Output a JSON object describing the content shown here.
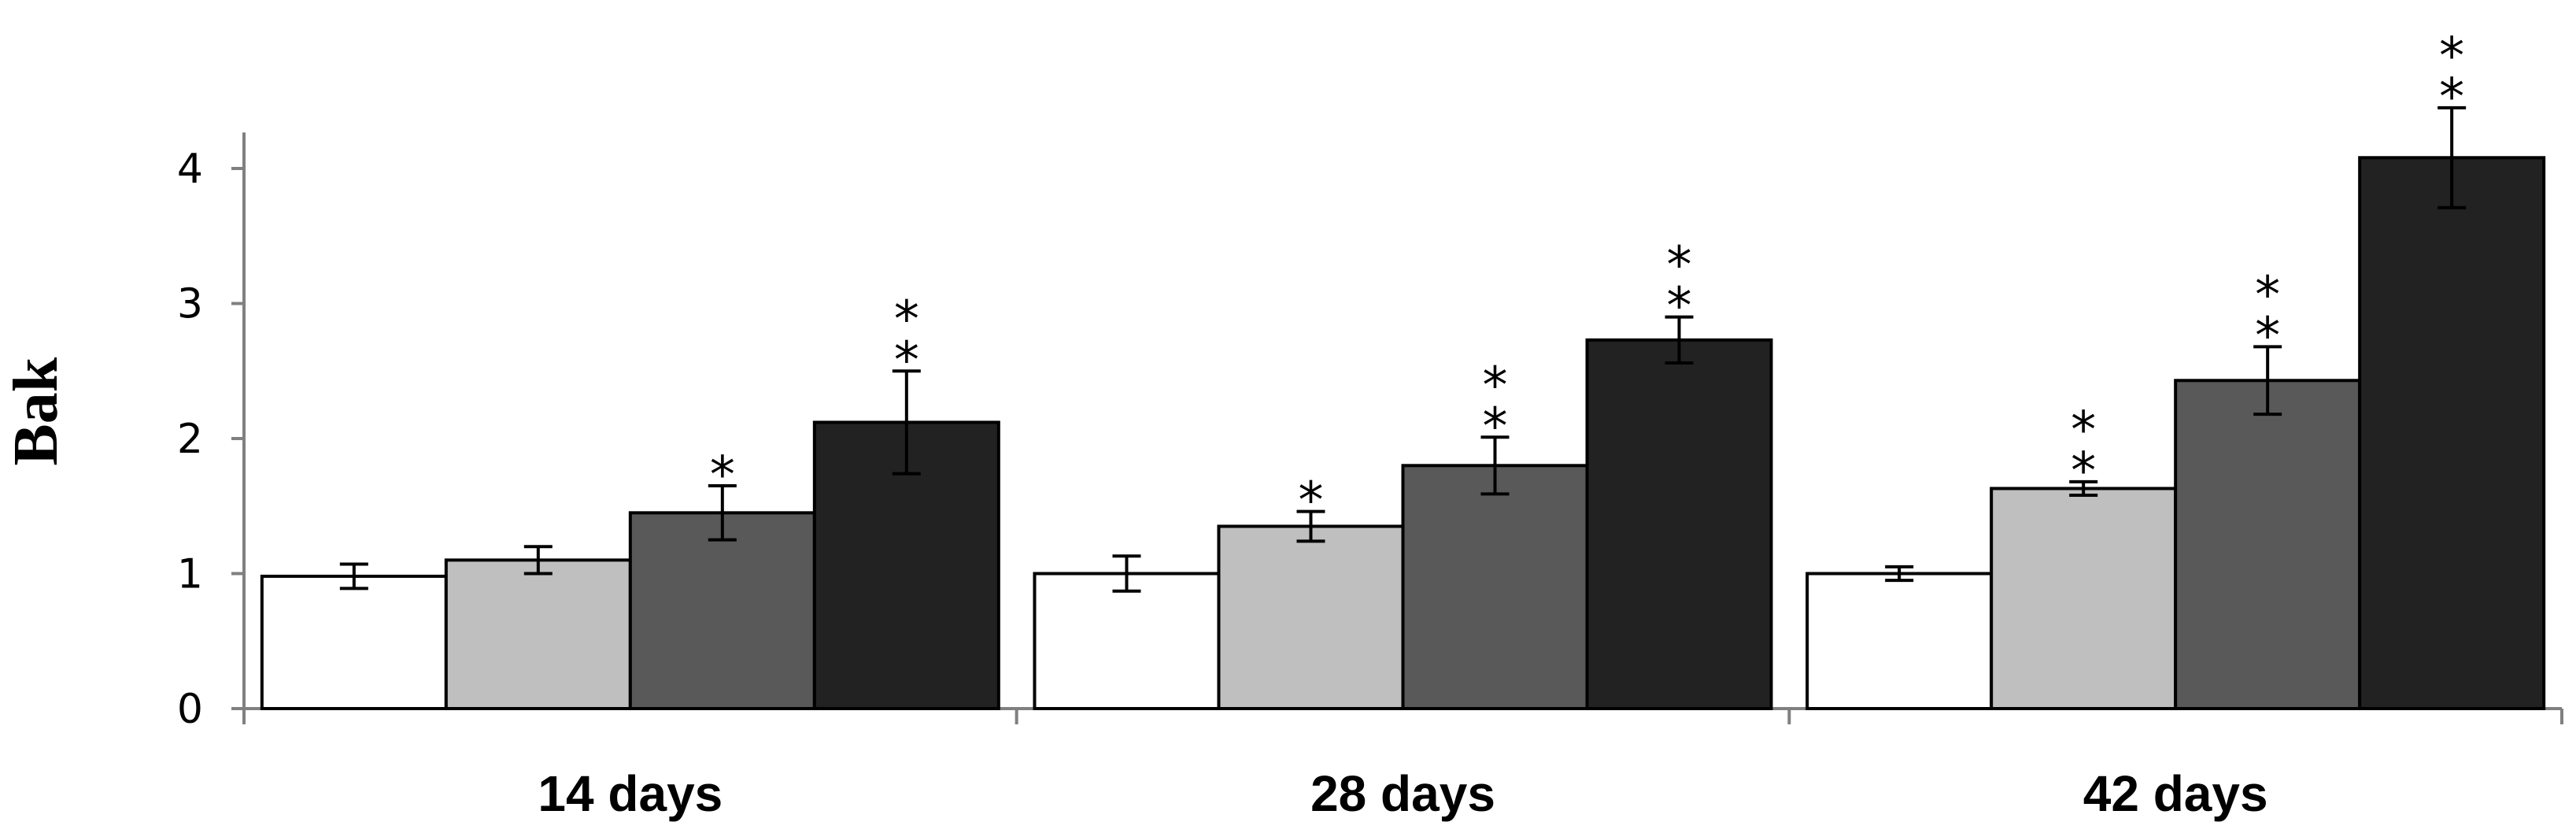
{
  "chart_data": {
    "type": "bar",
    "title": "",
    "xlabel": "",
    "ylabel": "Bak",
    "ylim": [
      0,
      4.5
    ],
    "yticks": [
      0,
      1,
      2,
      3,
      4
    ],
    "grid": false,
    "legend": "none",
    "categories": [
      "14 days",
      "28 days",
      "42 days"
    ],
    "series": [
      {
        "color": "#ffffff",
        "values": [
          0.98,
          1.0,
          1.0
        ],
        "errors": [
          0.09,
          0.13,
          0.05
        ],
        "significance": [
          "",
          "",
          ""
        ]
      },
      {
        "color": "#bfbfbf",
        "values": [
          1.1,
          1.35,
          1.63
        ],
        "errors": [
          0.1,
          0.11,
          0.05
        ],
        "significance": [
          "",
          "*",
          "**"
        ]
      },
      {
        "color": "#595959",
        "values": [
          1.45,
          1.8,
          2.43
        ],
        "errors": [
          0.2,
          0.21,
          0.25
        ],
        "significance": [
          "*",
          "**",
          "**"
        ]
      },
      {
        "color": "#222222",
        "values": [
          2.12,
          2.73,
          4.08
        ],
        "errors": [
          0.38,
          0.17,
          0.37
        ],
        "significance": [
          "**",
          "**",
          "**"
        ]
      }
    ]
  }
}
